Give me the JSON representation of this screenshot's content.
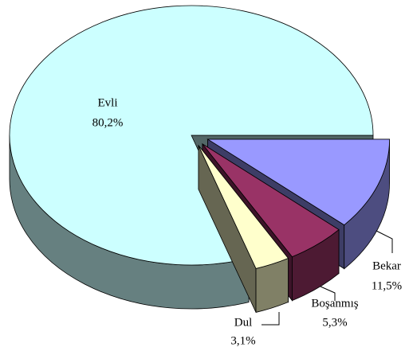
{
  "chart_data": {
    "type": "pie",
    "categories": [
      "Bekar",
      "Boşanmış",
      "Dul",
      "Evli"
    ],
    "values": [
      11.5,
      5.3,
      3.1,
      80.2
    ],
    "value_labels": [
      "11,5%",
      "5,3%",
      "3,1%",
      "80,2%"
    ],
    "colors": [
      "#9999ff",
      "#993366",
      "#ffffcc",
      "#ccffff"
    ]
  }
}
